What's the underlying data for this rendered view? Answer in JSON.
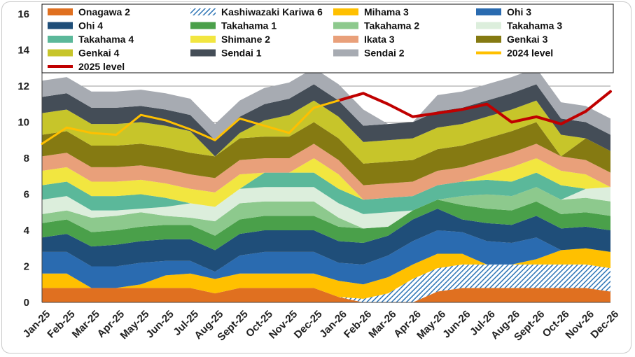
{
  "chart_data": {
    "type": "area",
    "stacked": true,
    "title": "",
    "xlabel": "",
    "ylabel": "",
    "ylim": [
      0,
      16
    ],
    "yticks": [
      0,
      2,
      4,
      6,
      8,
      10,
      12,
      14,
      16
    ],
    "grid": "horizontal",
    "legend_position": "top",
    "categories": [
      "Jan-25",
      "Feb-25",
      "Mar-25",
      "Apr-25",
      "May-25",
      "Jun-25",
      "Jul-25",
      "Aug-25",
      "Sept-25",
      "Oct-25",
      "Nov-25",
      "Dec-25",
      "Jan-26",
      "Feb-26",
      "Mar-26",
      "Apr-26",
      "May-26",
      "Jun-26",
      "Jul-26",
      "Aug-26",
      "Sept-26",
      "Oct-26",
      "Nov-26",
      "Dec-26"
    ],
    "series": [
      {
        "name": "Onagawa 2",
        "color": "#E07020",
        "values": [
          0.8,
          0.8,
          0.8,
          0.8,
          0.8,
          0.8,
          0.8,
          0.5,
          0.8,
          0.8,
          0.8,
          0.8,
          0.3,
          0.0,
          0.0,
          0.0,
          0.6,
          0.8,
          0.8,
          0.8,
          0.8,
          0.8,
          0.8,
          0.6
        ]
      },
      {
        "name": "Kashiwazaki Kariwa 6",
        "color": "#2E75B6",
        "pattern": "hatch",
        "values": [
          0,
          0,
          0,
          0,
          0,
          0,
          0,
          0,
          0,
          0,
          0,
          0,
          0,
          0.2,
          0.5,
          1.3,
          1.3,
          1.3,
          1.3,
          1.3,
          1.3,
          1.3,
          1.3,
          1.3
        ]
      },
      {
        "name": "Mihama 3",
        "color": "#FFC000",
        "values": [
          0.8,
          0.8,
          0.0,
          0.0,
          0.2,
          0.7,
          0.8,
          0.8,
          0.8,
          0.8,
          0.8,
          0.8,
          0.9,
          0.8,
          0.9,
          0.8,
          0.8,
          0.6,
          0.0,
          0.0,
          0.3,
          0.8,
          0.9,
          0.9
        ]
      },
      {
        "name": "Ohi 3",
        "color": "#2A6BB0",
        "values": [
          1.2,
          1.2,
          1.2,
          1.2,
          1.2,
          0.8,
          0.7,
          0.4,
          1.0,
          1.2,
          1.2,
          1.2,
          1.0,
          1.1,
          1.2,
          1.3,
          1.3,
          1.2,
          1.3,
          1.2,
          1.2,
          0.0,
          0.0,
          0.0
        ]
      },
      {
        "name": "Ohi 4",
        "color": "#1F4E79",
        "values": [
          0.8,
          1.0,
          1.1,
          1.2,
          1.2,
          1.2,
          1.2,
          1.2,
          1.2,
          1.2,
          1.2,
          1.2,
          1.2,
          1.2,
          1.1,
          1.2,
          1.2,
          0.7,
          1.0,
          1.0,
          1.2,
          1.2,
          1.2,
          1.2
        ]
      },
      {
        "name": "Takahama 1",
        "color": "#4AA04A",
        "values": [
          0.8,
          0.8,
          0.8,
          0.8,
          0.8,
          0.8,
          0.8,
          0.8,
          0.8,
          0.8,
          0.8,
          0.8,
          0.8,
          0.8,
          0.5,
          0.5,
          0.5,
          0.8,
          0.8,
          0.8,
          0.8,
          0.8,
          0.8,
          0.8
        ]
      },
      {
        "name": "Takahama 2",
        "color": "#8DC98D",
        "values": [
          0.5,
          0.5,
          0.8,
          0.8,
          0.8,
          0.5,
          0.4,
          0.8,
          0.9,
          0.8,
          0.8,
          0.8,
          0.5,
          0.0,
          0.0,
          0.0,
          0.0,
          0.5,
          0.8,
          0.8,
          0.8,
          0.8,
          0.8,
          0.8
        ]
      },
      {
        "name": "Takahama 3",
        "color": "#DCEEDC",
        "values": [
          0.8,
          0.8,
          0.4,
          0.3,
          0.2,
          0.5,
          0.8,
          0.8,
          0.8,
          0.8,
          0.8,
          0.8,
          0.8,
          0.8,
          0.8,
          0.0,
          0.0,
          0.0,
          0.0,
          0.0,
          0.0,
          0.0,
          0.5,
          0.8
        ]
      },
      {
        "name": "Takahama 4",
        "color": "#5BB89A",
        "values": [
          0.8,
          0.8,
          0.8,
          0.8,
          0.8,
          0.5,
          0.0,
          0.0,
          0.0,
          0.8,
          0.8,
          0.8,
          0.8,
          0.8,
          0.8,
          0.8,
          0.8,
          0.8,
          0.8,
          0.8,
          0.8,
          0.8,
          0.0,
          0.0
        ]
      },
      {
        "name": "Shimane 2",
        "color": "#F2E640",
        "values": [
          0.8,
          0.8,
          0.8,
          0.8,
          0.8,
          0.8,
          0.8,
          0.8,
          0.8,
          0.0,
          0.0,
          0.8,
          0.8,
          0.0,
          0.0,
          0.0,
          0.0,
          0.0,
          0.3,
          0.8,
          0.8,
          0.8,
          0.8,
          0.0
        ]
      },
      {
        "name": "Ikata 3",
        "color": "#E9A07A",
        "values": [
          0.8,
          0.8,
          0.8,
          0.8,
          0.8,
          0.8,
          0.8,
          0.8,
          0.8,
          0.8,
          0.8,
          0.8,
          0.8,
          0.8,
          0.8,
          0.8,
          0.8,
          0.8,
          0.8,
          0.8,
          0.8,
          0.8,
          0.8,
          0.8
        ]
      },
      {
        "name": "Genkai 3",
        "color": "#857A12",
        "values": [
          1.2,
          1.2,
          1.2,
          1.2,
          1.2,
          1.2,
          1.2,
          1.2,
          1.2,
          1.2,
          1.2,
          1.2,
          1.2,
          1.2,
          1.2,
          1.2,
          1.2,
          1.2,
          1.2,
          1.2,
          1.2,
          0.0,
          1.2,
          1.2
        ]
      },
      {
        "name": "Genkai 4",
        "color": "#C7C52A",
        "values": [
          1.2,
          1.2,
          1.2,
          1.2,
          1.2,
          1.2,
          1.2,
          0.0,
          0.3,
          0.9,
          1.2,
          1.2,
          1.2,
          1.2,
          1.2,
          1.2,
          1.2,
          1.2,
          1.2,
          1.2,
          1.2,
          1.2,
          0.0,
          0.0
        ]
      },
      {
        "name": "Sendai 1",
        "color": "#444D57",
        "values": [
          0.9,
          0.9,
          0.9,
          0.9,
          0.9,
          0.9,
          0.9,
          0.9,
          0.9,
          0.9,
          0.9,
          0.9,
          0.9,
          0.9,
          0.9,
          0.9,
          0.9,
          0.9,
          0.9,
          0.9,
          0.9,
          0.9,
          0.9,
          0.9
        ]
      },
      {
        "name": "Sendai 2",
        "color": "#A7ABB2",
        "values": [
          0.9,
          0.9,
          0.9,
          0.9,
          0.9,
          0.9,
          0.9,
          0.9,
          0.9,
          0.9,
          0.9,
          0.9,
          0.9,
          0.9,
          0.0,
          0.0,
          0.9,
          0.9,
          0.9,
          0.9,
          0.9,
          0.9,
          0.9,
          0.9
        ]
      }
    ],
    "lines": [
      {
        "name": "2025 level",
        "color": "#C00000",
        "start_index": 12,
        "values": [
          11.2,
          11.6,
          11.0,
          10.3,
          10.5,
          10.7,
          11.0,
          10.0,
          10.3,
          9.9,
          10.6,
          11.7
        ]
      },
      {
        "name": "2024 level",
        "color": "#FFC000",
        "start_index": 0,
        "values": [
          8.8,
          9.7,
          9.4,
          9.3,
          10.4,
          10.1,
          9.6,
          9.0,
          10.2,
          9.8,
          9.4,
          10.8,
          11.2
        ]
      }
    ],
    "legend": [
      [
        "Onagawa 2",
        "Kashiwazaki Kariwa 6",
        "Mihama 3",
        "Ohi 3"
      ],
      [
        "Ohi 4",
        "Takahama 1",
        "Takahama 2",
        "Takahama 3"
      ],
      [
        "Takahama 4",
        "Shimane 2",
        "Ikata 3",
        "Genkai 3"
      ],
      [
        "Genkai 4",
        "Sendai 1",
        "Sendai 2",
        "2024 level"
      ],
      [
        "2025 level"
      ]
    ]
  }
}
